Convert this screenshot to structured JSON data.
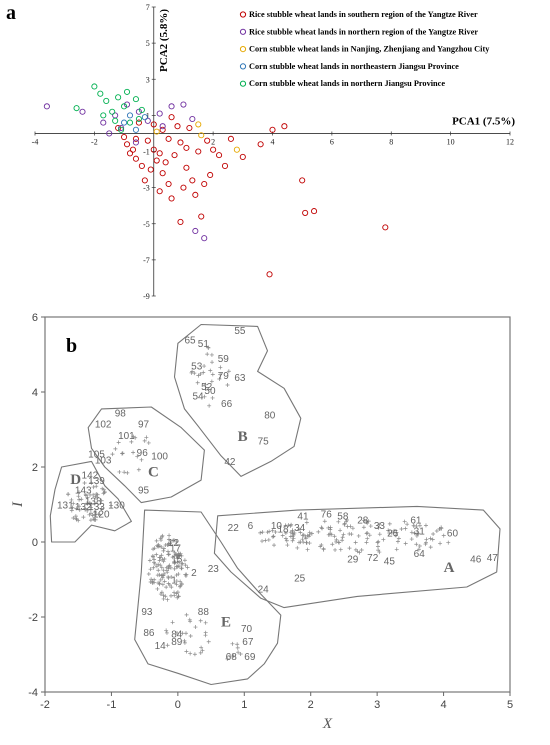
{
  "panels": {
    "a": "a",
    "b": "b"
  },
  "chart_data": [
    {
      "type": "scatter",
      "panel": "a",
      "xlabel": "PCA1 (7.5%)",
      "ylabel": "PCA2 (5.8%)",
      "xlim": [
        -4,
        12
      ],
      "ylim": [
        -9,
        7
      ],
      "x_ticks": [
        -4,
        -2,
        2,
        4,
        6,
        8,
        10,
        12
      ],
      "y_ticks": [
        7,
        5,
        3,
        1,
        -1,
        -3,
        -5,
        -7,
        -9
      ],
      "legend_position": "top-right",
      "series": [
        {
          "name": "Rice stubble wheat lands in southern region of the Yangtze River",
          "color": "#c00000",
          "points": [
            [
              -1.2,
              0.3
            ],
            [
              -1.0,
              -0.2
            ],
            [
              -0.9,
              -0.6
            ],
            [
              -0.7,
              -0.9
            ],
            [
              -0.6,
              -1.4
            ],
            [
              -0.4,
              -1.8
            ],
            [
              -0.2,
              -0.4
            ],
            [
              0.0,
              -0.9
            ],
            [
              0.1,
              -1.5
            ],
            [
              0.3,
              -2.2
            ],
            [
              0.5,
              -2.8
            ],
            [
              0.7,
              -1.2
            ],
            [
              0.9,
              -0.5
            ],
            [
              1.1,
              -1.9
            ],
            [
              1.3,
              -2.6
            ],
            [
              1.5,
              -1.0
            ],
            [
              0.2,
              -3.2
            ],
            [
              0.6,
              -3.6
            ],
            [
              0.9,
              -4.9
            ],
            [
              1.6,
              -4.6
            ],
            [
              1.9,
              -2.3
            ],
            [
              2.2,
              -1.2
            ],
            [
              2.6,
              -0.3
            ],
            [
              3.0,
              -1.3
            ],
            [
              3.6,
              -0.6
            ],
            [
              4.0,
              0.2
            ],
            [
              4.4,
              0.4
            ],
            [
              5.0,
              -2.6
            ],
            [
              5.1,
              -4.4
            ],
            [
              5.4,
              -4.3
            ],
            [
              7.8,
              -5.2
            ],
            [
              3.9,
              -7.8
            ],
            [
              0.3,
              0.2
            ],
            [
              0.6,
              0.9
            ],
            [
              0.8,
              0.4
            ],
            [
              -0.5,
              0.6
            ],
            [
              -0.3,
              -2.6
            ],
            [
              0.4,
              -1.6
            ],
            [
              1.0,
              -3.0
            ],
            [
              1.7,
              -2.8
            ],
            [
              2.4,
              -1.8
            ],
            [
              1.8,
              -0.4
            ],
            [
              1.2,
              0.3
            ],
            [
              0.0,
              0.5
            ],
            [
              -0.8,
              -1.1
            ],
            [
              -0.1,
              -2.0
            ],
            [
              1.4,
              -3.4
            ],
            [
              2.0,
              -0.9
            ],
            [
              0.5,
              -0.3
            ],
            [
              -0.6,
              -0.3
            ],
            [
              0.2,
              -1.1
            ],
            [
              1.1,
              -0.8
            ]
          ]
        },
        {
          "name": "Rice stubble wheat lands in northern region of the Yangtze River",
          "color": "#7030a0",
          "points": [
            [
              -3.6,
              1.5
            ],
            [
              -2.4,
              1.2
            ],
            [
              -1.7,
              0.6
            ],
            [
              -1.3,
              1.0
            ],
            [
              -1.1,
              0.3
            ],
            [
              -0.9,
              1.6
            ],
            [
              -0.5,
              1.2
            ],
            [
              -0.2,
              0.7
            ],
            [
              0.2,
              1.1
            ],
            [
              0.6,
              1.5
            ],
            [
              1.0,
              1.6
            ],
            [
              1.3,
              0.8
            ],
            [
              1.4,
              -5.4
            ],
            [
              1.7,
              -5.8
            ],
            [
              -1.5,
              0.0
            ],
            [
              -0.6,
              -0.5
            ],
            [
              0.3,
              0.4
            ]
          ]
        },
        {
          "name": "Corn stubble wheat lands in Nanjing, Zhenjiang and Yangzhou City",
          "color": "#e6a800",
          "points": [
            [
              1.5,
              0.5
            ],
            [
              1.6,
              -0.1
            ],
            [
              2.8,
              -0.9
            ],
            [
              0.1,
              0.1
            ]
          ]
        },
        {
          "name": "Corn stubble wheat lands in northeastern Jiangsu Province",
          "color": "#2e75b6",
          "points": [
            [
              -0.8,
              1.0
            ],
            [
              -0.6,
              0.2
            ],
            [
              -0.3,
              0.9
            ],
            [
              -1.0,
              0.6
            ]
          ]
        },
        {
          "name": "Corn stubble wheat lands in northern Jiangsu Province",
          "color": "#00b050",
          "points": [
            [
              -2.6,
              1.4
            ],
            [
              -2.0,
              2.6
            ],
            [
              -1.8,
              2.2
            ],
            [
              -1.6,
              1.8
            ],
            [
              -1.4,
              1.2
            ],
            [
              -1.2,
              2.0
            ],
            [
              -1.0,
              1.5
            ],
            [
              -0.8,
              0.6
            ],
            [
              -0.6,
              1.9
            ],
            [
              -0.4,
              1.3
            ],
            [
              -1.3,
              0.7
            ],
            [
              -0.9,
              2.3
            ],
            [
              -1.7,
              1.0
            ],
            [
              -0.5,
              0.8
            ],
            [
              -1.1,
              0.2
            ]
          ]
        }
      ]
    },
    {
      "type": "scatter",
      "panel": "b",
      "xlabel": "X",
      "ylabel": "I",
      "xlim": [
        -2,
        5
      ],
      "ylim": [
        -4,
        6
      ],
      "x_ticks": [
        -2,
        -1,
        0,
        1,
        2,
        3,
        4,
        5
      ],
      "y_ticks": [
        6,
        4,
        2,
        0,
        -2,
        -4
      ],
      "clusters": [
        {
          "label": "A",
          "x": 4.0,
          "y": -0.8
        },
        {
          "label": "B",
          "x": 0.9,
          "y": 2.7
        },
        {
          "label": "C",
          "x": -0.45,
          "y": 1.75
        },
        {
          "label": "D",
          "x": -1.62,
          "y": 1.55
        },
        {
          "label": "E",
          "x": 0.65,
          "y": -2.25
        }
      ],
      "labels": [
        {
          "t": "55",
          "x": 0.85,
          "y": 5.55
        },
        {
          "t": "65",
          "x": 0.1,
          "y": 5.3
        },
        {
          "t": "51",
          "x": 0.3,
          "y": 5.2
        },
        {
          "t": "59",
          "x": 0.6,
          "y": 4.8
        },
        {
          "t": "53",
          "x": 0.2,
          "y": 4.6
        },
        {
          "t": "79",
          "x": 0.6,
          "y": 4.35
        },
        {
          "t": "63",
          "x": 0.85,
          "y": 4.3
        },
        {
          "t": "52",
          "x": 0.35,
          "y": 4.05
        },
        {
          "t": "50",
          "x": 0.4,
          "y": 3.95
        },
        {
          "t": "54",
          "x": 0.22,
          "y": 3.8
        },
        {
          "t": "66",
          "x": 0.65,
          "y": 3.6
        },
        {
          "t": "80",
          "x": 1.3,
          "y": 3.3
        },
        {
          "t": "75",
          "x": 1.2,
          "y": 2.6
        },
        {
          "t": "42",
          "x": 0.7,
          "y": 2.05
        },
        {
          "t": "98",
          "x": -0.95,
          "y": 3.35
        },
        {
          "t": "97",
          "x": -0.6,
          "y": 3.05
        },
        {
          "t": "102",
          "x": -1.25,
          "y": 3.05
        },
        {
          "t": "101",
          "x": -0.9,
          "y": 2.75
        },
        {
          "t": "96",
          "x": -0.62,
          "y": 2.3
        },
        {
          "t": "100",
          "x": -0.4,
          "y": 2.2
        },
        {
          "t": "105",
          "x": -1.35,
          "y": 2.25
        },
        {
          "t": "103",
          "x": -1.25,
          "y": 2.1
        },
        {
          "t": "95",
          "x": -0.6,
          "y": 1.3
        },
        {
          "t": "142",
          "x": -1.45,
          "y": 1.7
        },
        {
          "t": "139",
          "x": -1.35,
          "y": 1.55
        },
        {
          "t": "143",
          "x": -1.55,
          "y": 1.3
        },
        {
          "t": "138",
          "x": -1.4,
          "y": 1.0
        },
        {
          "t": "131",
          "x": -1.82,
          "y": 0.9
        },
        {
          "t": "132",
          "x": -1.55,
          "y": 0.85
        },
        {
          "t": "133",
          "x": -1.35,
          "y": 0.85
        },
        {
          "t": "130",
          "x": -1.05,
          "y": 0.9
        },
        {
          "t": "120",
          "x": -1.28,
          "y": 0.65
        },
        {
          "t": "22",
          "x": 0.75,
          "y": 0.3
        },
        {
          "t": "6",
          "x": 1.05,
          "y": 0.35
        },
        {
          "t": "10",
          "x": 1.4,
          "y": 0.35
        },
        {
          "t": "18",
          "x": 1.5,
          "y": 0.25
        },
        {
          "t": "34",
          "x": 1.75,
          "y": 0.3
        },
        {
          "t": "41",
          "x": 1.8,
          "y": 0.6
        },
        {
          "t": "76",
          "x": 2.15,
          "y": 0.65
        },
        {
          "t": "58",
          "x": 2.4,
          "y": 0.6
        },
        {
          "t": "28",
          "x": 2.7,
          "y": 0.5
        },
        {
          "t": "33",
          "x": 2.95,
          "y": 0.35
        },
        {
          "t": "26",
          "x": 3.15,
          "y": 0.15
        },
        {
          "t": "61",
          "x": 3.5,
          "y": 0.5
        },
        {
          "t": "31",
          "x": 3.55,
          "y": 0.2
        },
        {
          "t": "60",
          "x": 4.05,
          "y": 0.15
        },
        {
          "t": "29",
          "x": 2.55,
          "y": -0.55
        },
        {
          "t": "72",
          "x": 2.85,
          "y": -0.5
        },
        {
          "t": "45",
          "x": 3.1,
          "y": -0.6
        },
        {
          "t": "64",
          "x": 3.55,
          "y": -0.4
        },
        {
          "t": "46",
          "x": 4.4,
          "y": -0.55
        },
        {
          "t": "47",
          "x": 4.65,
          "y": -0.5
        },
        {
          "t": "25",
          "x": 1.75,
          "y": -1.05
        },
        {
          "t": "24",
          "x": 1.2,
          "y": -1.35
        },
        {
          "t": "23",
          "x": 0.45,
          "y": -0.8
        },
        {
          "t": "12",
          "x": -0.15,
          "y": -0.1
        },
        {
          "t": "17",
          "x": -0.12,
          "y": -0.25
        },
        {
          "t": "15",
          "x": -0.1,
          "y": -0.55
        },
        {
          "t": "2",
          "x": 0.2,
          "y": -0.9
        },
        {
          "t": "1",
          "x": -0.1,
          "y": -1.1
        },
        {
          "t": "88",
          "x": 0.3,
          "y": -1.95
        },
        {
          "t": "93",
          "x": -0.55,
          "y": -1.95
        },
        {
          "t": "86",
          "x": -0.52,
          "y": -2.5
        },
        {
          "t": "84",
          "x": -0.1,
          "y": -2.55
        },
        {
          "t": "89",
          "x": -0.1,
          "y": -2.75
        },
        {
          "t": "14",
          "x": -0.35,
          "y": -2.85
        },
        {
          "t": "70",
          "x": 0.95,
          "y": -2.4
        },
        {
          "t": "67",
          "x": 0.97,
          "y": -2.75
        },
        {
          "t": "68",
          "x": 0.72,
          "y": -3.15
        },
        {
          "t": "69",
          "x": 1.0,
          "y": -3.15
        }
      ]
    }
  ]
}
